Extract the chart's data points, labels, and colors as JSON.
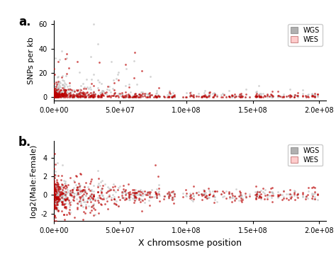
{
  "title_a": "a.",
  "title_b": "b.",
  "xlabel": "X chromsosme position",
  "ylabel_a": "SNPs per kb",
  "ylabel_b": "log2(Male:Female)",
  "xlim": [
    0,
    205000000.0
  ],
  "ylim_a": [
    -3,
    63
  ],
  "ylim_b": [
    -2.8,
    5.8
  ],
  "yticks_a": [
    0,
    20,
    40,
    60
  ],
  "yticks_b": [
    -2,
    0,
    2,
    4
  ],
  "xticks": [
    0.0,
    50000000.0,
    100000000.0,
    150000000.0,
    200000000.0
  ],
  "xtick_labels": [
    "0.0e+00",
    "5.0e+07",
    "1.0e+08",
    "1.5e+08",
    "2.0e+08"
  ],
  "wgs_color": "#b0b0b0",
  "wes_color": "#bb0000",
  "wes_light_color": "#ffcccc",
  "wgs_alpha": 0.55,
  "wes_alpha": 0.65,
  "point_size": 4,
  "background_color": "#ffffff",
  "seed": 7
}
